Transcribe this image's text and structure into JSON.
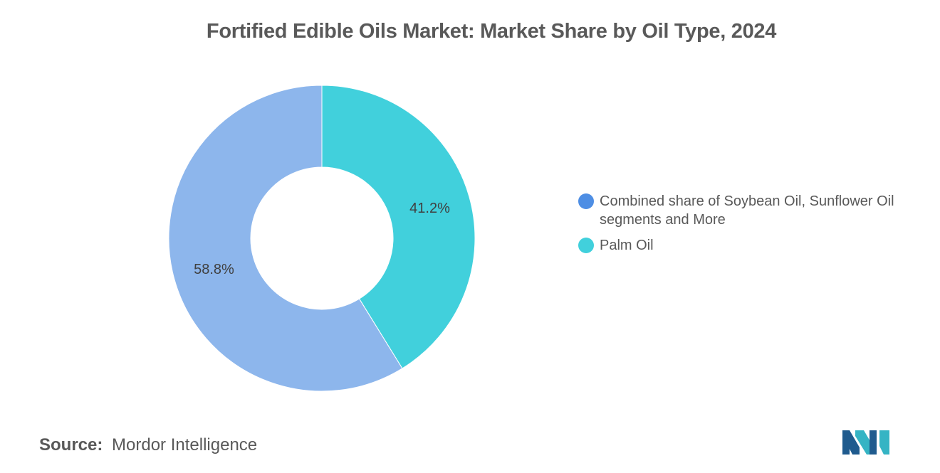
{
  "chart_data": {
    "type": "pie",
    "title": "Fortified Edible Oils Market: Market Share by Oil Type, 2024",
    "donut": true,
    "legend_position": "right",
    "series": [
      {
        "name": "Combined share of Soybean Oil, Sunflower Oil segments and More",
        "value": 58.8,
        "label": "58.8%",
        "color": "#8db6ec",
        "legend_color": "#4e8ee4"
      },
      {
        "name": "Palm Oil",
        "value": 41.2,
        "label": "41.2%",
        "color": "#41d0dc",
        "legend_color": "#41d0dc"
      }
    ]
  },
  "source": {
    "label": "Source:",
    "text": "Mordor Intelligence"
  },
  "colors": {
    "text": "#595959",
    "logo_dark": "#1f5b8e",
    "logo_teal": "#35b4c4"
  }
}
